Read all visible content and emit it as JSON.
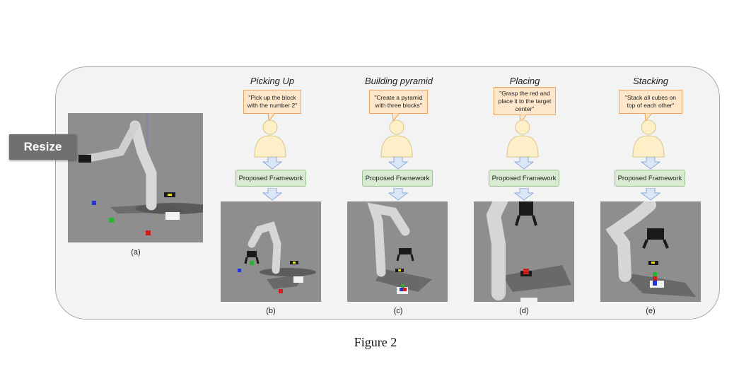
{
  "columns": [
    {
      "title": "Picking Up",
      "instruction": "\"Pick up the block with the number 2\"",
      "framework": "Proposed Framework",
      "label": "(b)"
    },
    {
      "title": "Building pyramid",
      "instruction": "\"Create a pyramid with three blocks\"",
      "framework": "Proposed Framework",
      "label": "(c)"
    },
    {
      "title": "Placing",
      "instruction": "\"Grasp the red and place it to the target center\"",
      "framework": "Proposed Framework",
      "label": "(d)"
    },
    {
      "title": "Stacking",
      "instruction": "\"Stack all cubes on top of each other\"",
      "framework": "Proposed Framework",
      "label": "(e)"
    }
  ],
  "initial_scene": {
    "label": "(a)"
  },
  "overlay": {
    "resize_label": "Resize"
  },
  "caption": "Figure 2",
  "colors": {
    "bubble_fill": "#fde6c9",
    "bubble_border": "#e9a55b",
    "person_fill": "#fdf0c8",
    "framework_fill": "#d8ead2",
    "arrow_fill": "#dbe7f7",
    "scene_bg": "#8e8e8e"
  }
}
